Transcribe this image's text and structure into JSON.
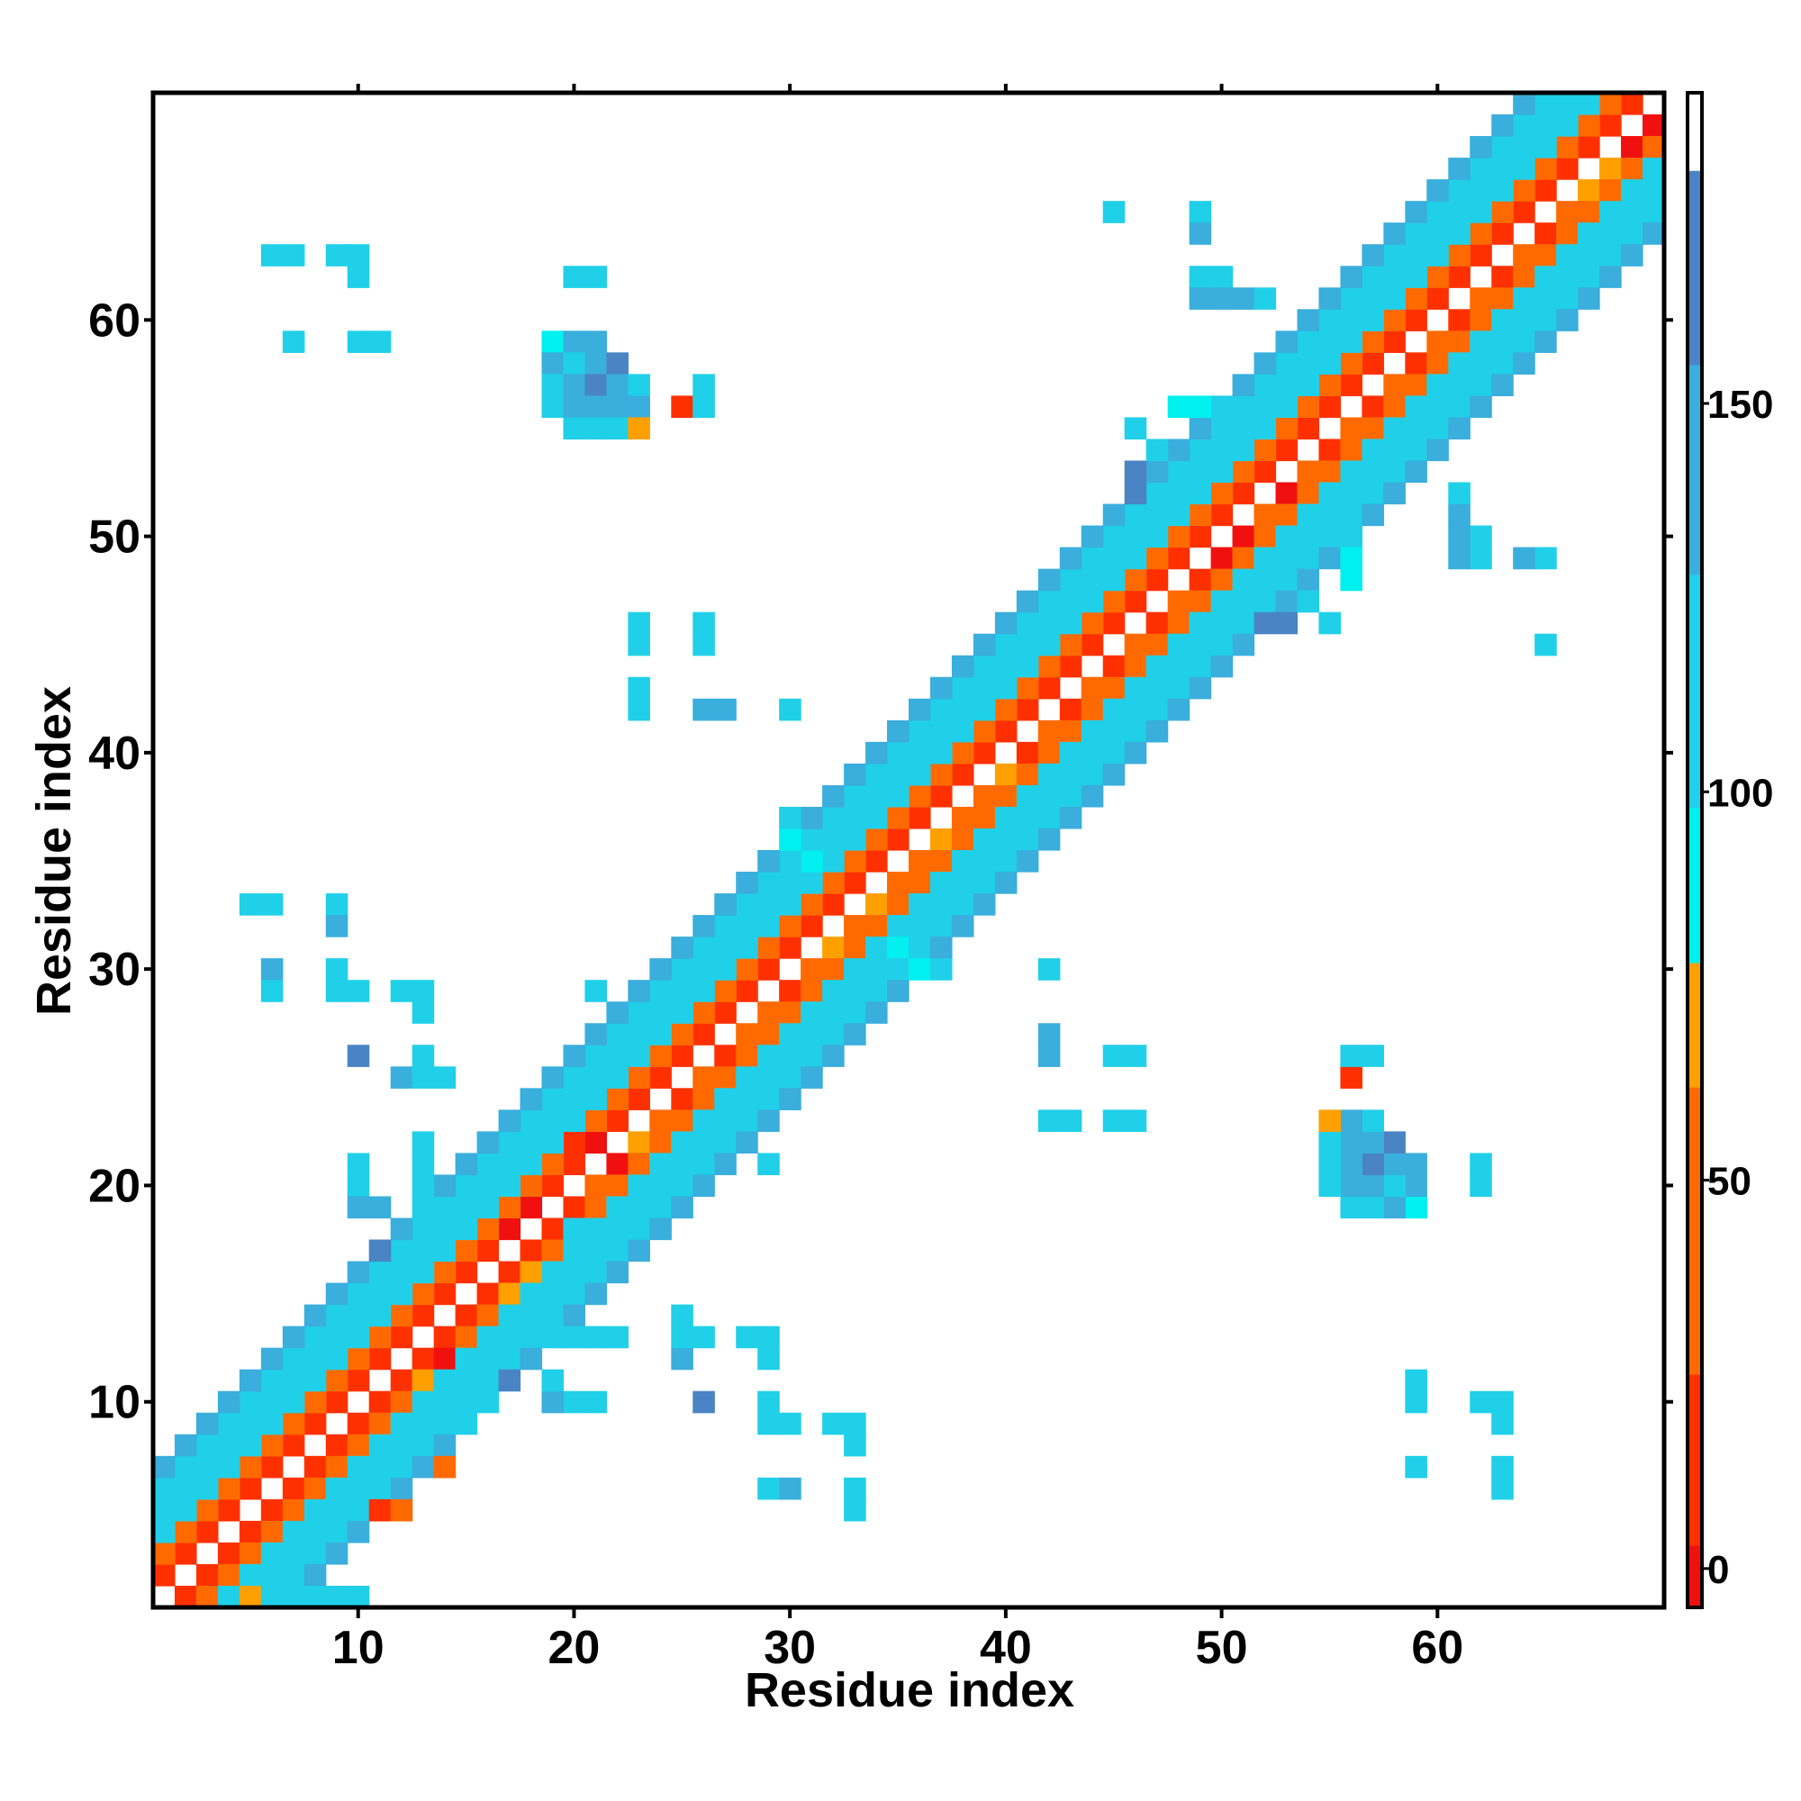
{
  "chart_data": {
    "type": "heatmap",
    "xlabel": "Residue index",
    "ylabel": "Residue index",
    "x_range": [
      1,
      70
    ],
    "y_range": [
      1,
      70
    ],
    "x_ticks": [
      10,
      20,
      30,
      40,
      50,
      60
    ],
    "y_ticks": [
      10,
      20,
      30,
      40,
      50,
      60
    ],
    "grid": false,
    "legend": "colorbar-right",
    "colorbar": {
      "range": [
        -5,
        190
      ],
      "ticks": [
        0,
        50,
        100,
        150
      ],
      "bands": [
        {
          "from": -5,
          "to": 3,
          "color": "#f01010"
        },
        {
          "from": 3,
          "to": 25,
          "color": "#ff3000"
        },
        {
          "from": 25,
          "to": 62,
          "color": "#ff6a00"
        },
        {
          "from": 62,
          "to": 78,
          "color": "#ffa000"
        },
        {
          "from": 78,
          "to": 98,
          "color": "#00f0f0"
        },
        {
          "from": 98,
          "to": 128,
          "color": "#20d0e8"
        },
        {
          "from": 128,
          "to": 155,
          "color": "#3aaedc"
        },
        {
          "from": 155,
          "to": 180,
          "color": "#4a84c4"
        },
        {
          "from": 180,
          "to": 190,
          "color": "#ffffff"
        }
      ]
    },
    "cell_colors": {
      "r": "#f01010",
      "R": "#ff3000",
      "o": "#ff6a00",
      "O": "#ffa000",
      "C": "#00f0f0",
      "c": "#20d0e8",
      "b": "#3aaedc",
      "B": "#4a84c4"
    },
    "diagonal_bands": [
      {
        "offset": 1,
        "value": "R"
      },
      {
        "offset": 2,
        "value": "o"
      },
      {
        "offset": 3,
        "value": "c"
      },
      {
        "offset": 4,
        "value": "c"
      },
      {
        "offset": 5,
        "value": "c"
      },
      {
        "offset": 6,
        "value": "b"
      }
    ],
    "cells": [
      [
        5,
        1,
        "O"
      ],
      [
        7,
        1,
        "c"
      ],
      [
        8,
        1,
        "c"
      ],
      [
        9,
        1,
        "c"
      ],
      [
        10,
        1,
        "c"
      ],
      [
        11,
        5,
        "R"
      ],
      [
        12,
        5,
        "o"
      ],
      [
        14,
        7,
        "o"
      ],
      [
        15,
        9,
        "c"
      ],
      [
        16,
        10,
        "c"
      ],
      [
        13,
        11,
        "O"
      ],
      [
        14,
        12,
        "r"
      ],
      [
        15,
        13,
        "o"
      ],
      [
        16,
        14,
        "o"
      ],
      [
        17,
        15,
        "O"
      ],
      [
        18,
        16,
        "O"
      ],
      [
        19,
        17,
        "o"
      ],
      [
        20,
        18,
        "c"
      ],
      [
        17,
        18,
        "r"
      ],
      [
        18,
        19,
        "r"
      ],
      [
        21,
        20,
        "o"
      ],
      [
        22,
        21,
        "r"
      ],
      [
        21,
        22,
        "r"
      ],
      [
        20,
        22,
        "R"
      ],
      [
        23,
        22,
        "O"
      ],
      [
        24,
        23,
        "o"
      ],
      [
        25,
        24,
        "R"
      ],
      [
        26,
        25,
        "o"
      ],
      [
        27,
        26,
        "R"
      ],
      [
        28,
        27,
        "o"
      ],
      [
        29,
        28,
        "o"
      ],
      [
        30,
        29,
        "R"
      ],
      [
        31,
        30,
        "o"
      ],
      [
        32,
        31,
        "O"
      ],
      [
        33,
        32,
        "o"
      ],
      [
        34,
        33,
        "O"
      ],
      [
        35,
        34,
        "o"
      ],
      [
        36,
        35,
        "o"
      ],
      [
        37,
        36,
        "O"
      ],
      [
        38,
        37,
        "o"
      ],
      [
        39,
        38,
        "o"
      ],
      [
        40,
        39,
        "O"
      ],
      [
        41,
        40,
        "R"
      ],
      [
        42,
        41,
        "o"
      ],
      [
        43,
        42,
        "R"
      ],
      [
        44,
        43,
        "o"
      ],
      [
        45,
        44,
        "R"
      ],
      [
        46,
        45,
        "o"
      ],
      [
        47,
        46,
        "R"
      ],
      [
        48,
        47,
        "o"
      ],
      [
        49,
        48,
        "R"
      ],
      [
        50,
        49,
        "r"
      ],
      [
        51,
        50,
        "r"
      ],
      [
        52,
        51,
        "o"
      ],
      [
        53,
        52,
        "r"
      ],
      [
        54,
        53,
        "o"
      ],
      [
        55,
        54,
        "R"
      ],
      [
        56,
        55,
        "o"
      ],
      [
        57,
        56,
        "R"
      ],
      [
        58,
        57,
        "o"
      ],
      [
        59,
        58,
        "R"
      ],
      [
        60,
        59,
        "o"
      ],
      [
        61,
        60,
        "R"
      ],
      [
        62,
        61,
        "o"
      ],
      [
        63,
        62,
        "R"
      ],
      [
        64,
        63,
        "o"
      ],
      [
        65,
        64,
        "R"
      ],
      [
        66,
        65,
        "o"
      ],
      [
        67,
        66,
        "O"
      ],
      [
        68,
        67,
        "O"
      ],
      [
        69,
        68,
        "r"
      ],
      [
        70,
        69,
        "r"
      ],
      [
        36,
        30,
        "C"
      ],
      [
        37,
        30,
        "c"
      ],
      [
        35,
        31,
        "C"
      ],
      [
        36,
        31,
        "c"
      ],
      [
        30,
        36,
        "C"
      ],
      [
        31,
        36,
        "c"
      ],
      [
        31,
        35,
        "C"
      ],
      [
        30,
        37,
        "c"
      ],
      [
        55,
        46,
        "c"
      ],
      [
        56,
        48,
        "C"
      ],
      [
        56,
        49,
        "C"
      ],
      [
        56,
        50,
        "c"
      ],
      [
        46,
        55,
        "c"
      ],
      [
        48,
        56,
        "C"
      ],
      [
        49,
        56,
        "C"
      ],
      [
        50,
        56,
        "c"
      ],
      [
        53,
        46,
        "B"
      ],
      [
        52,
        46,
        "B"
      ],
      [
        54,
        47,
        "c"
      ],
      [
        46,
        53,
        "B"
      ],
      [
        46,
        52,
        "B"
      ],
      [
        47,
        54,
        "c"
      ],
      [
        7,
        63,
        "c"
      ],
      [
        6,
        63,
        "c"
      ],
      [
        10,
        63,
        "c"
      ],
      [
        10,
        62,
        "c"
      ],
      [
        7,
        59,
        "c"
      ],
      [
        10,
        59,
        "c"
      ],
      [
        11,
        59,
        "c"
      ],
      [
        63,
        7,
        "c"
      ],
      [
        63,
        6,
        "c"
      ],
      [
        63,
        10,
        "c"
      ],
      [
        62,
        10,
        "c"
      ],
      [
        59,
        7,
        "c"
      ],
      [
        59,
        10,
        "c"
      ],
      [
        59,
        11,
        "c"
      ],
      [
        19,
        59,
        "C"
      ],
      [
        20,
        59,
        "b"
      ],
      [
        21,
        59,
        "b"
      ],
      [
        19,
        58,
        "b"
      ],
      [
        20,
        58,
        "c"
      ],
      [
        21,
        58,
        "b"
      ],
      [
        22,
        58,
        "B"
      ],
      [
        19,
        57,
        "c"
      ],
      [
        20,
        57,
        "b"
      ],
      [
        21,
        57,
        "B"
      ],
      [
        22,
        57,
        "b"
      ],
      [
        23,
        57,
        "c"
      ],
      [
        19,
        56,
        "c"
      ],
      [
        20,
        56,
        "b"
      ],
      [
        21,
        56,
        "b"
      ],
      [
        22,
        56,
        "b"
      ],
      [
        23,
        56,
        "b"
      ],
      [
        20,
        55,
        "c"
      ],
      [
        21,
        55,
        "c"
      ],
      [
        22,
        55,
        "c"
      ],
      [
        23,
        55,
        "O"
      ],
      [
        25,
        56,
        "R"
      ],
      [
        26,
        56,
        "c"
      ],
      [
        26,
        57,
        "c"
      ],
      [
        20,
        62,
        "c"
      ],
      [
        21,
        62,
        "c"
      ],
      [
        59,
        19,
        "C"
      ],
      [
        59,
        20,
        "b"
      ],
      [
        59,
        21,
        "b"
      ],
      [
        58,
        19,
        "b"
      ],
      [
        58,
        20,
        "c"
      ],
      [
        58,
        21,
        "b"
      ],
      [
        58,
        22,
        "B"
      ],
      [
        57,
        19,
        "c"
      ],
      [
        57,
        20,
        "b"
      ],
      [
        57,
        21,
        "B"
      ],
      [
        57,
        22,
        "b"
      ],
      [
        57,
        23,
        "c"
      ],
      [
        56,
        19,
        "c"
      ],
      [
        56,
        20,
        "b"
      ],
      [
        56,
        21,
        "b"
      ],
      [
        56,
        22,
        "b"
      ],
      [
        56,
        23,
        "b"
      ],
      [
        55,
        20,
        "c"
      ],
      [
        55,
        21,
        "c"
      ],
      [
        55,
        22,
        "c"
      ],
      [
        55,
        23,
        "O"
      ],
      [
        56,
        25,
        "R"
      ],
      [
        56,
        26,
        "c"
      ],
      [
        57,
        26,
        "c"
      ],
      [
        62,
        20,
        "c"
      ],
      [
        62,
        21,
        "c"
      ],
      [
        45,
        65,
        "c"
      ],
      [
        49,
        65,
        "c"
      ],
      [
        49,
        64,
        "b"
      ],
      [
        49,
        62,
        "c"
      ],
      [
        50,
        62,
        "c"
      ],
      [
        49,
        61,
        "b"
      ],
      [
        50,
        61,
        "b"
      ],
      [
        51,
        61,
        "b"
      ],
      [
        52,
        61,
        "c"
      ],
      [
        65,
        45,
        "c"
      ],
      [
        65,
        49,
        "c"
      ],
      [
        64,
        49,
        "b"
      ],
      [
        62,
        49,
        "c"
      ],
      [
        62,
        50,
        "c"
      ],
      [
        61,
        49,
        "b"
      ],
      [
        61,
        50,
        "b"
      ],
      [
        61,
        51,
        "b"
      ],
      [
        61,
        52,
        "c"
      ],
      [
        23,
        46,
        "c"
      ],
      [
        26,
        46,
        "c"
      ],
      [
        23,
        43,
        "c"
      ],
      [
        23,
        42,
        "c"
      ],
      [
        26,
        42,
        "b"
      ],
      [
        27,
        42,
        "c"
      ],
      [
        30,
        42,
        "c"
      ],
      [
        46,
        23,
        "c"
      ],
      [
        46,
        26,
        "c"
      ],
      [
        43,
        23,
        "c"
      ],
      [
        42,
        23,
        "c"
      ],
      [
        42,
        26,
        "b"
      ],
      [
        42,
        27,
        "c"
      ],
      [
        42,
        30,
        "c"
      ],
      [
        5,
        33,
        "c"
      ],
      [
        6,
        33,
        "c"
      ],
      [
        9,
        33,
        "c"
      ],
      [
        9,
        32,
        "b"
      ],
      [
        6,
        30,
        "b"
      ],
      [
        6,
        29,
        "c"
      ],
      [
        9,
        30,
        "c"
      ],
      [
        9,
        29,
        "c"
      ],
      [
        10,
        29,
        "c"
      ],
      [
        12,
        29,
        "c"
      ],
      [
        13,
        29,
        "c"
      ],
      [
        13,
        28,
        "c"
      ],
      [
        10,
        26,
        "B"
      ],
      [
        13,
        26,
        "c"
      ],
      [
        12,
        25,
        "b"
      ],
      [
        13,
        25,
        "c"
      ],
      [
        14,
        25,
        "c"
      ],
      [
        21,
        29,
        "c"
      ],
      [
        10,
        21,
        "c"
      ],
      [
        10,
        20,
        "c"
      ],
      [
        10,
        19,
        "b"
      ],
      [
        11,
        19,
        "b"
      ],
      [
        13,
        22,
        "c"
      ],
      [
        13,
        21,
        "c"
      ],
      [
        13,
        20,
        "c"
      ],
      [
        13,
        19,
        "c"
      ],
      [
        11,
        17,
        "B"
      ],
      [
        11,
        16,
        "c"
      ],
      [
        33,
        5,
        "c"
      ],
      [
        33,
        6,
        "c"
      ],
      [
        33,
        9,
        "c"
      ],
      [
        32,
        9,
        "b"
      ],
      [
        30,
        6,
        "b"
      ],
      [
        29,
        6,
        "c"
      ],
      [
        30,
        9,
        "c"
      ],
      [
        29,
        9,
        "c"
      ],
      [
        29,
        10,
        "c"
      ],
      [
        29,
        12,
        "c"
      ],
      [
        29,
        13,
        "c"
      ],
      [
        28,
        13,
        "c"
      ],
      [
        26,
        10,
        "B"
      ],
      [
        26,
        13,
        "c"
      ],
      [
        25,
        12,
        "b"
      ],
      [
        25,
        13,
        "c"
      ],
      [
        25,
        14,
        "c"
      ],
      [
        29,
        21,
        "c"
      ],
      [
        21,
        10,
        "c"
      ],
      [
        20,
        10,
        "c"
      ],
      [
        19,
        10,
        "b"
      ],
      [
        19,
        11,
        "b"
      ],
      [
        22,
        13,
        "c"
      ],
      [
        21,
        13,
        "c"
      ],
      [
        20,
        13,
        "c"
      ],
      [
        19,
        13,
        "c"
      ],
      [
        17,
        11,
        "B"
      ],
      [
        16,
        11,
        "c"
      ],
      [
        42,
        30,
        "c"
      ],
      [
        42,
        27,
        "b"
      ],
      [
        42,
        26,
        "b"
      ],
      [
        45,
        26,
        "c"
      ],
      [
        42,
        23,
        "c"
      ],
      [
        43,
        23,
        "c"
      ],
      [
        45,
        23,
        "c"
      ],
      [
        30,
        42,
        "c"
      ],
      [
        27,
        42,
        "b"
      ],
      [
        26,
        42,
        "b"
      ],
      [
        26,
        45,
        "c"
      ],
      [
        23,
        42,
        "c"
      ],
      [
        23,
        43,
        "c"
      ],
      [
        23,
        45,
        "c"
      ],
      [
        19,
        13,
        "c"
      ],
      [
        20,
        13,
        "c"
      ],
      [
        21,
        13,
        "c"
      ],
      [
        19,
        11,
        "c"
      ],
      [
        20,
        10,
        "c"
      ],
      [
        21,
        10,
        "c"
      ],
      [
        25,
        13,
        "c"
      ],
      [
        25,
        12,
        "b"
      ],
      [
        26,
        10,
        "B"
      ],
      [
        28,
        13,
        "c"
      ],
      [
        29,
        13,
        "c"
      ],
      [
        29,
        12,
        "c"
      ],
      [
        29,
        10,
        "c"
      ],
      [
        30,
        9,
        "c"
      ],
      [
        32,
        9,
        "c"
      ],
      [
        33,
        9,
        "c"
      ],
      [
        33,
        8,
        "c"
      ],
      [
        29,
        6,
        "c"
      ],
      [
        30,
        6,
        "b"
      ],
      [
        33,
        6,
        "c"
      ],
      [
        33,
        5,
        "c"
      ],
      [
        59,
        10,
        "c"
      ],
      [
        59,
        7,
        "c"
      ],
      [
        62,
        10,
        "c"
      ],
      [
        63,
        10,
        "c"
      ],
      [
        63,
        9,
        "c"
      ],
      [
        10,
        59,
        "c"
      ],
      [
        7,
        59,
        "c"
      ],
      [
        10,
        62,
        "c"
      ],
      [
        10,
        63,
        "c"
      ],
      [
        9,
        63,
        "c"
      ],
      [
        63,
        7,
        "c"
      ],
      [
        63,
        6,
        "c"
      ]
    ]
  }
}
